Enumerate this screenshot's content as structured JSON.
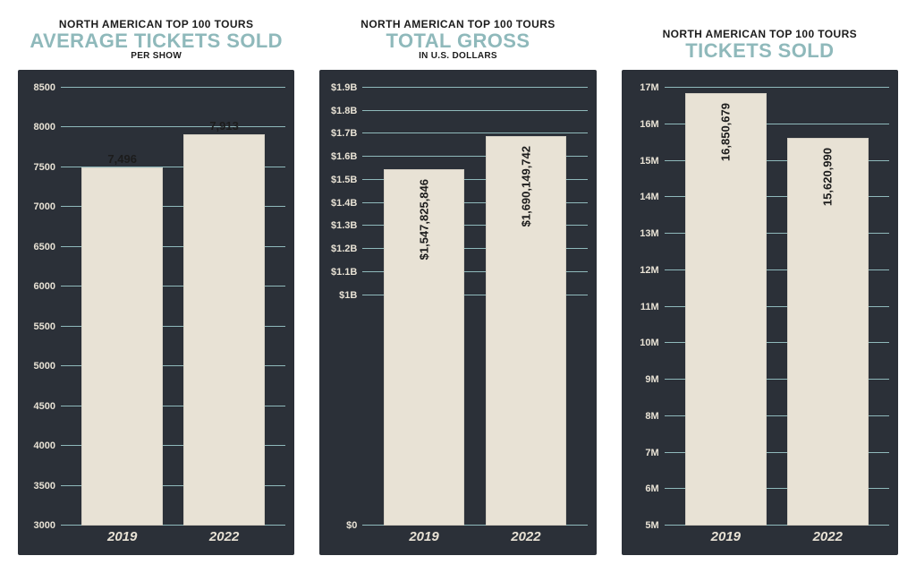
{
  "background_color": "#ffffff",
  "panels": [
    {
      "supertitle": "NORTH AMERICAN TOP 100 TOURS",
      "title": "AVERAGE TICKETS SOLD",
      "title_color": "#8fb9bb",
      "subtitle": "PER SHOW",
      "chart": {
        "type": "bar",
        "bg_color": "#2b3038",
        "grid_color": "#8fb9bb",
        "tick_color": "#e8e2d5",
        "xtick_color": "#e8e2d5",
        "bar_color": "#e8e2d5",
        "label_placement": "top",
        "ymin": 3000,
        "ymax": 8500,
        "ytick_step": 500,
        "ytick_format": "plain",
        "categories": [
          "2019",
          "2022"
        ],
        "values": [
          7496,
          7913
        ],
        "value_labels": [
          "7,496",
          "7,913"
        ]
      }
    },
    {
      "supertitle": "NORTH AMERICAN TOP 100 TOURS",
      "title": "TOTAL GROSS",
      "title_color": "#8fb9bb",
      "subtitle": "IN U.S. DOLLARS",
      "chart": {
        "type": "bar",
        "bg_color": "#2b3038",
        "grid_color": "#8fb9bb",
        "tick_color": "#e8e2d5",
        "xtick_color": "#e8e2d5",
        "bar_color": "#e8e2d5",
        "label_placement": "side",
        "ymin": 0,
        "ymax": 1900000000,
        "ytick_step": 100000000,
        "ytick_min": 1000000000,
        "ytick_format": "billions",
        "categories": [
          "2019",
          "2022"
        ],
        "values": [
          1547825846,
          1690149742
        ],
        "value_labels": [
          "$1,547,825,846",
          "$1,690,149,742"
        ]
      }
    },
    {
      "supertitle": "NORTH AMERICAN TOP 100 TOURS",
      "title": "TICKETS SOLD",
      "title_color": "#8fb9bb",
      "subtitle": "",
      "chart": {
        "type": "bar",
        "bg_color": "#2b3038",
        "grid_color": "#8fb9bb",
        "tick_color": "#e8e2d5",
        "xtick_color": "#e8e2d5",
        "bar_color": "#e8e2d5",
        "label_placement": "side",
        "ymin": 5000000,
        "ymax": 17000000,
        "ytick_step": 1000000,
        "ytick_format": "millions",
        "categories": [
          "2019",
          "2022"
        ],
        "values": [
          16850679,
          15620990
        ],
        "value_labels": [
          "16,850,679",
          "15,620,990"
        ]
      }
    }
  ]
}
